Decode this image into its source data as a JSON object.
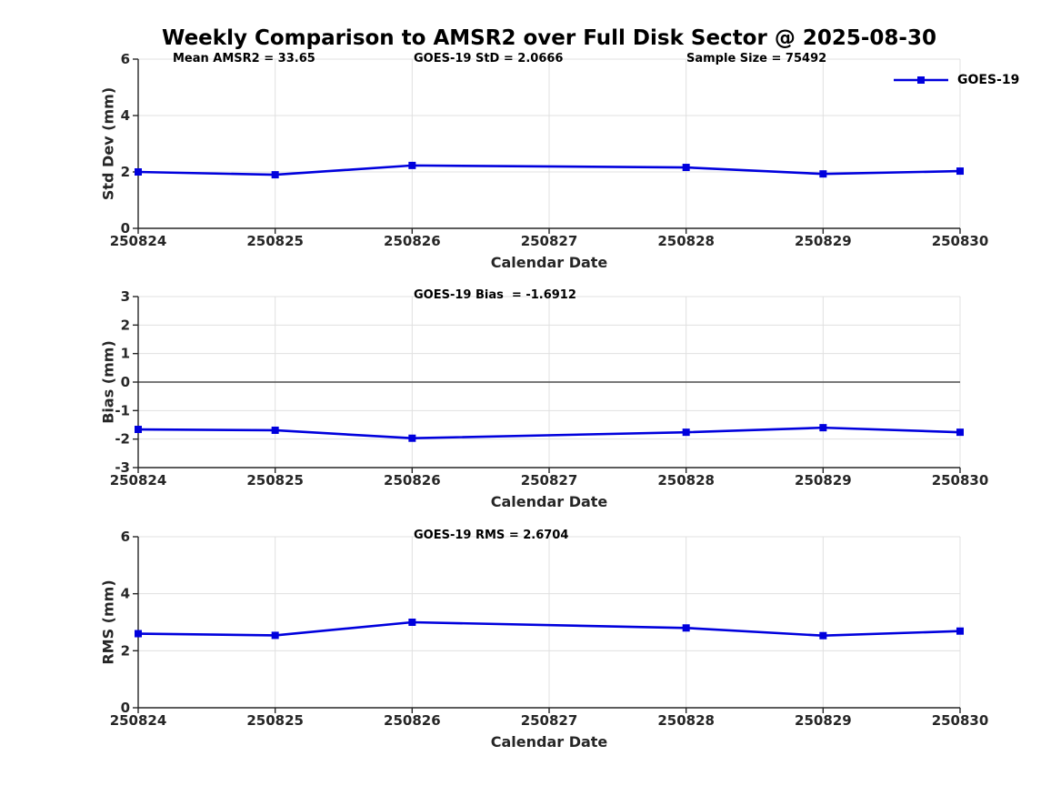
{
  "title": "Weekly Comparison to AMSR2 over Full Disk Sector @ 2025-08-30",
  "legend": {
    "label": "GOES-19"
  },
  "colors": {
    "series": "#0000dd",
    "grid": "#e0e0e0",
    "axis": "#262626",
    "zero_line": "#4d4d4d",
    "background": "#ffffff"
  },
  "chart_data": [
    {
      "type": "line",
      "ylabel": "Std Dev (mm)",
      "xlabel": "Calendar Date",
      "annotations": [
        {
          "text": "Mean AMSR2 = 33.65"
        },
        {
          "text": "GOES-19 StD = 2.0666"
        },
        {
          "text": "Sample Size = 75492"
        }
      ],
      "x_tick_labels": [
        "250824",
        "250825",
        "250826",
        "250827",
        "250828",
        "250829",
        "250830"
      ],
      "ylim": [
        0,
        6
      ],
      "yticks": [
        0,
        2,
        4,
        6
      ],
      "grid": true,
      "zero_line": false,
      "legend_position": "top-right-outside",
      "series": [
        {
          "name": "GOES-19",
          "x": [
            "250824",
            "250825",
            "250826",
            "250828",
            "250829",
            "250830"
          ],
          "values": [
            2.0,
            1.9,
            2.23,
            2.16,
            1.93,
            2.03
          ]
        }
      ]
    },
    {
      "type": "line",
      "ylabel": "Bias (mm)",
      "xlabel": "Calendar Date",
      "annotations": [
        {
          "text": "GOES-19 Bias  = -1.6912"
        }
      ],
      "x_tick_labels": [
        "250824",
        "250825",
        "250826",
        "250827",
        "250828",
        "250829",
        "250830"
      ],
      "ylim": [
        -3,
        3
      ],
      "yticks": [
        -3,
        -2,
        -1,
        0,
        1,
        2,
        3
      ],
      "grid": true,
      "zero_line": true,
      "series": [
        {
          "name": "GOES-19",
          "x": [
            "250824",
            "250825",
            "250826",
            "250828",
            "250829",
            "250830"
          ],
          "values": [
            -1.66,
            -1.69,
            -1.97,
            -1.76,
            -1.6,
            -1.76
          ]
        }
      ]
    },
    {
      "type": "line",
      "ylabel": "RMS (mm)",
      "xlabel": "Calendar Date",
      "annotations": [
        {
          "text": "GOES-19 RMS = 2.6704"
        }
      ],
      "x_tick_labels": [
        "250824",
        "250825",
        "250826",
        "250827",
        "250828",
        "250829",
        "250830"
      ],
      "ylim": [
        0,
        6
      ],
      "yticks": [
        0,
        2,
        4,
        6
      ],
      "grid": true,
      "zero_line": false,
      "series": [
        {
          "name": "GOES-19",
          "x": [
            "250824",
            "250825",
            "250826",
            "250828",
            "250829",
            "250830"
          ],
          "values": [
            2.6,
            2.54,
            3.0,
            2.8,
            2.53,
            2.69
          ]
        }
      ]
    }
  ]
}
